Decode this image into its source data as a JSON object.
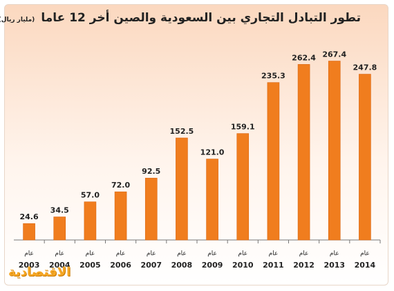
{
  "title": "تطور التبادل التجاري بين السعودية والصين أخر 12 عاما",
  "unit": "(مليار ريال)",
  "logo_text": "الاقتصادية",
  "colors": {
    "bar": "#f07d1e",
    "bar_edge": "#d96510",
    "axis": "#777777",
    "label": "#222222"
  },
  "chart_data": {
    "type": "bar",
    "title": "تطور التبادل التجاري بين السعودية والصين أخر 12 عاما",
    "ylabel": "(مليار ريال)",
    "xlabel": "",
    "category_prefix": "عام",
    "categories": [
      "2003",
      "2004",
      "2005",
      "2006",
      "2007",
      "2008",
      "2009",
      "2010",
      "2011",
      "2012",
      "2013",
      "2014"
    ],
    "values": [
      24.6,
      34.5,
      57.0,
      72.0,
      92.5,
      152.5,
      121.0,
      159.1,
      235.3,
      262.4,
      267.4,
      247.8
    ],
    "ylim": [
      0,
      270
    ],
    "grid": false,
    "legend": "none"
  }
}
